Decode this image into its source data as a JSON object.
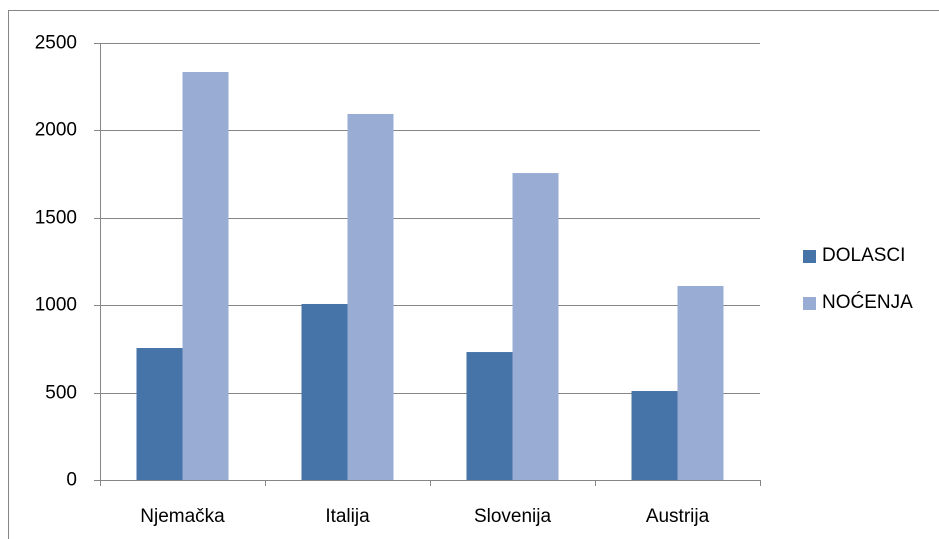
{
  "chart_data": {
    "type": "bar",
    "categories": [
      "Njemačka",
      "Italija",
      "Slovenija",
      "Austrija"
    ],
    "series": [
      {
        "name": "DOLASCI",
        "color": "#4673a8",
        "values": [
          755,
          1007,
          732,
          509
        ]
      },
      {
        "name": "NOĆENJA",
        "color": "#98acd4",
        "values": [
          2334,
          2094,
          1756,
          1110
        ]
      }
    ],
    "ylim": [
      0,
      2500
    ],
    "yticks": [
      0,
      500,
      1000,
      1500,
      2000,
      2500
    ],
    "grid": true,
    "legend": "right"
  }
}
